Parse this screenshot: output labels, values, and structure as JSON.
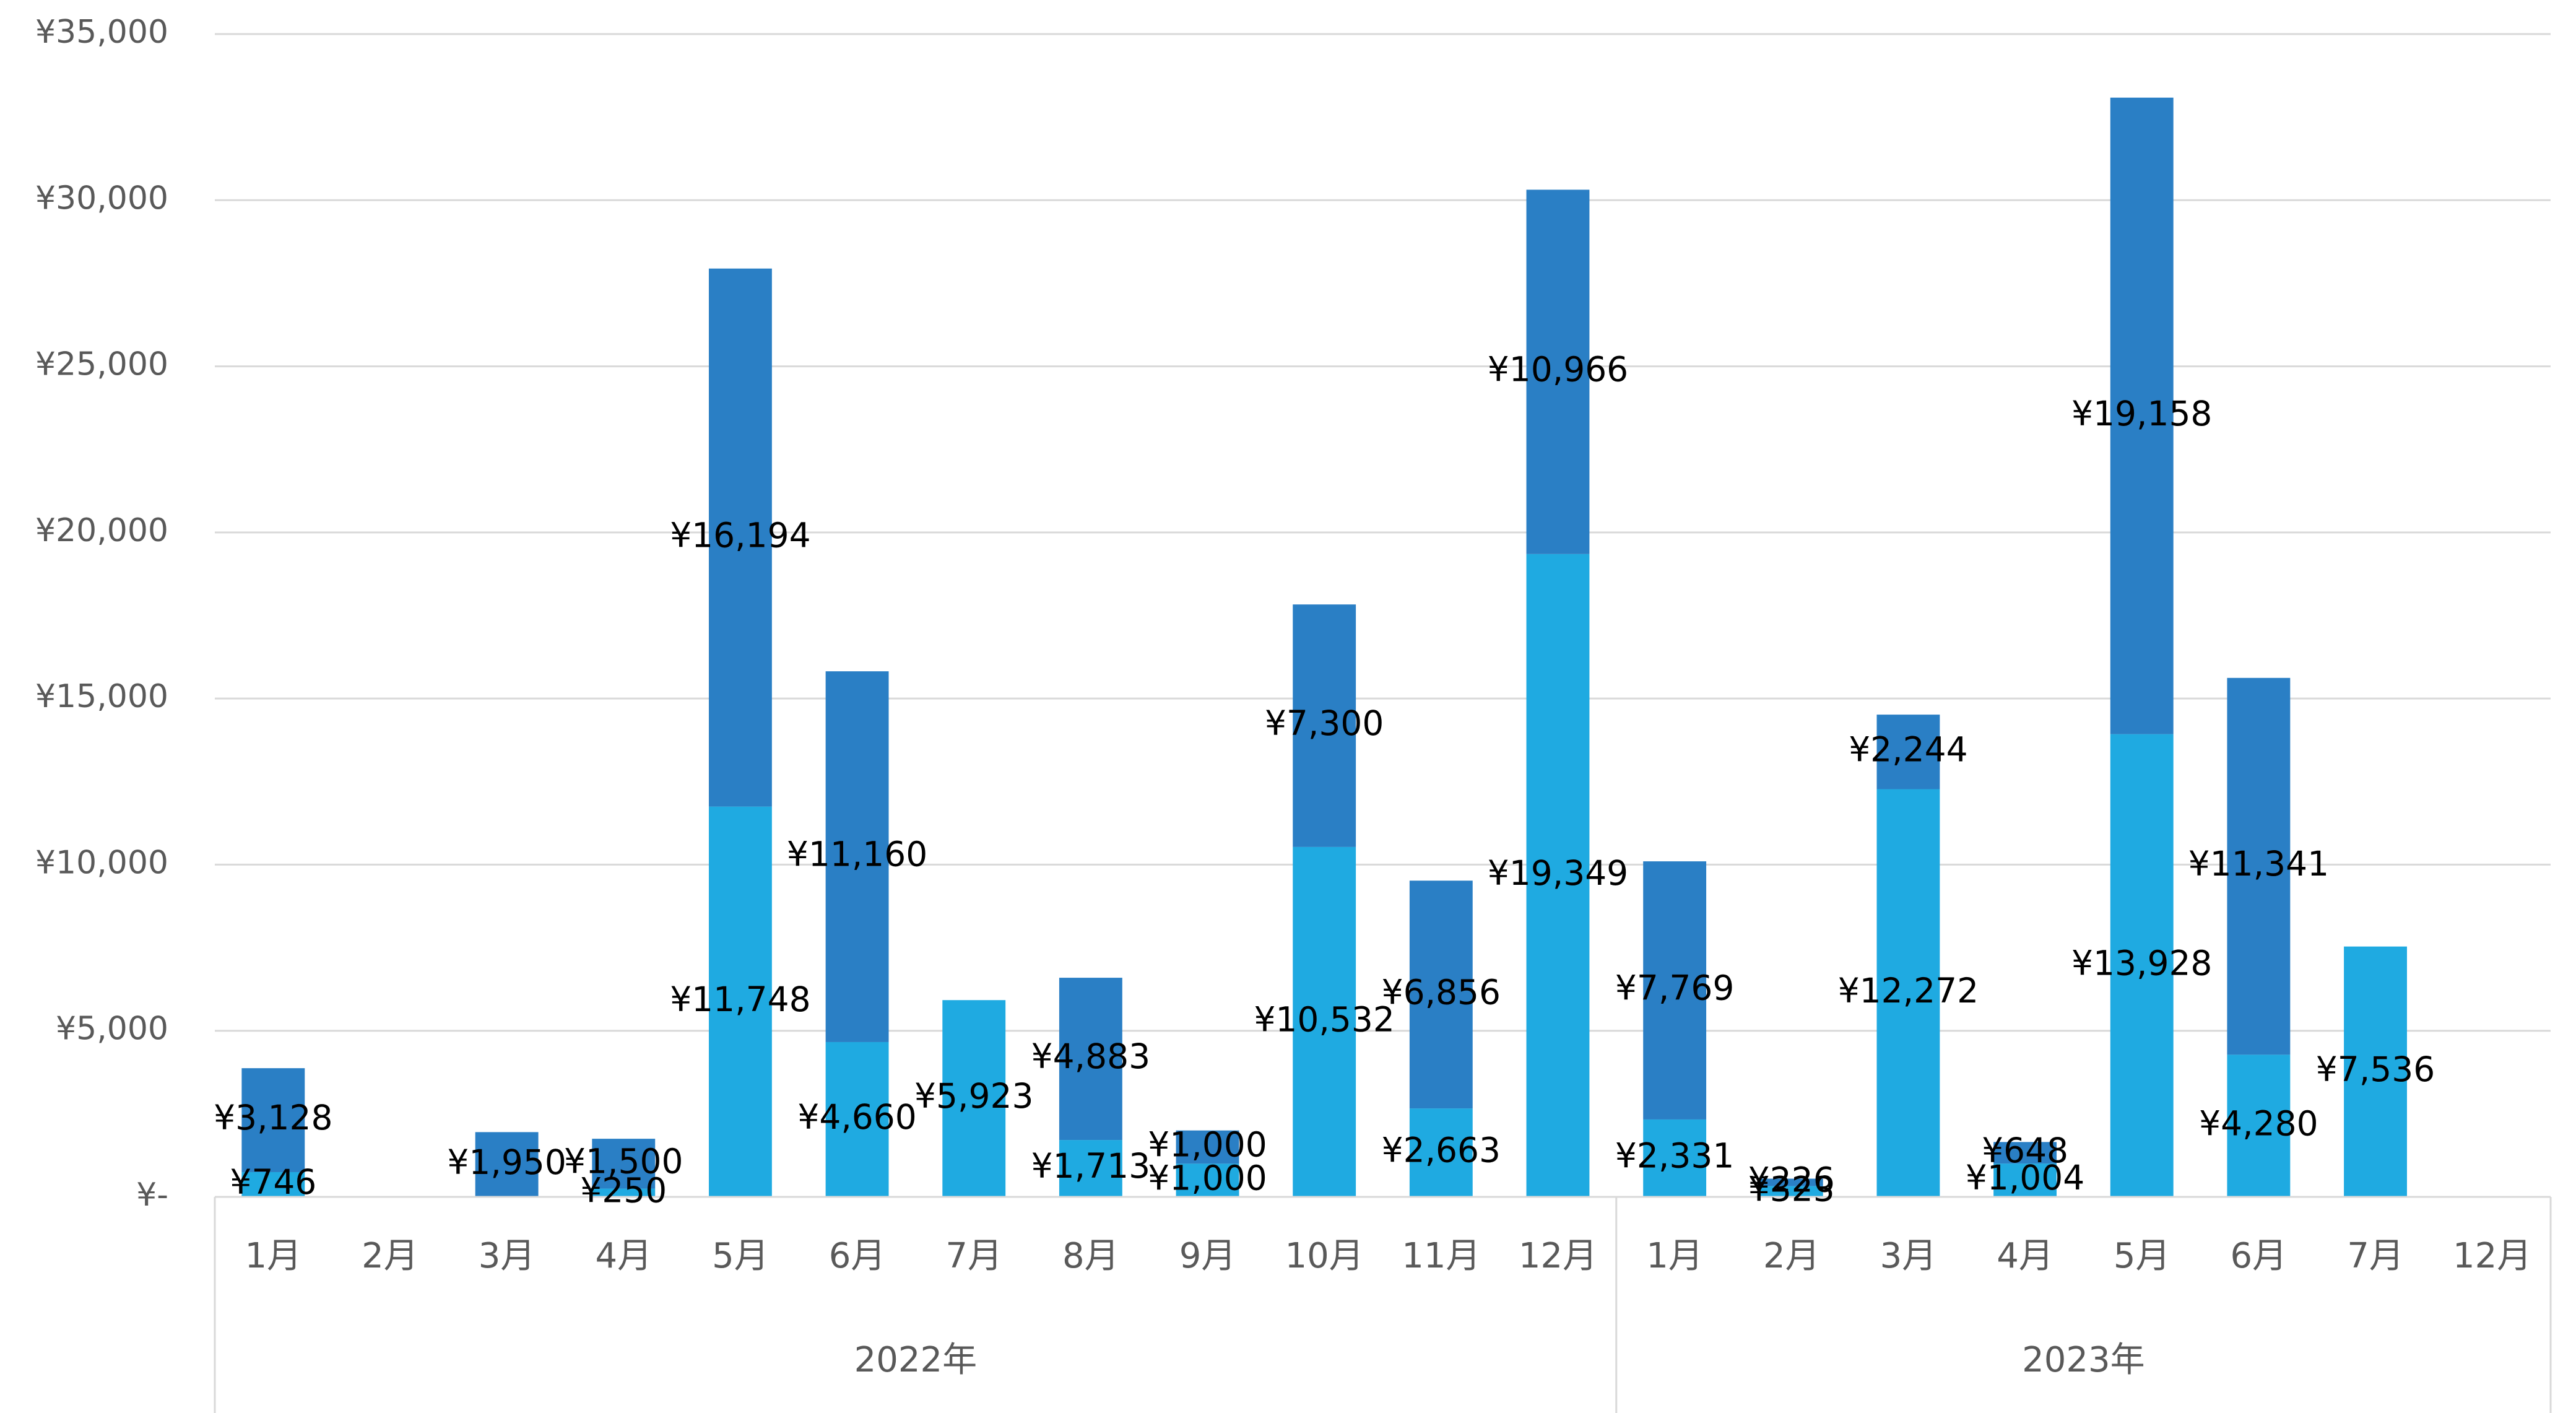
{
  "chart_data": {
    "type": "bar",
    "stacked": true,
    "ylim": [
      0,
      35000
    ],
    "yticks": [
      {
        "value": 0,
        "label": "¥-"
      },
      {
        "value": 5000,
        "label": "¥5,000"
      },
      {
        "value": 10000,
        "label": "¥10,000"
      },
      {
        "value": 15000,
        "label": "¥15,000"
      },
      {
        "value": 20000,
        "label": "¥20,000"
      },
      {
        "value": 25000,
        "label": "¥25,000"
      },
      {
        "value": 30000,
        "label": "¥30,000"
      },
      {
        "value": 35000,
        "label": "¥35,000"
      }
    ],
    "grid": true,
    "legend": "none",
    "groups": [
      {
        "label": "2022年",
        "count": 12
      },
      {
        "label": "2023年",
        "count": 8
      }
    ],
    "categories": [
      "1月",
      "2月",
      "3月",
      "4月",
      "5月",
      "6月",
      "7月",
      "8月",
      "9月",
      "10月",
      "11月",
      "12月",
      "1月",
      "2月",
      "3月",
      "4月",
      "5月",
      "6月",
      "7月",
      "12月"
    ],
    "series": [
      {
        "color": "#1faae1",
        "values": [
          746,
          null,
          null,
          250,
          11748,
          4660,
          5923,
          1713,
          1000,
          10532,
          2663,
          19349,
          2331,
          323,
          12272,
          1004,
          13928,
          4280,
          7536,
          null
        ],
        "labels": [
          "¥746",
          "",
          "",
          "¥250",
          "¥11,748",
          "¥4,660",
          "¥5,923",
          "¥1,713",
          "¥1,000",
          "¥10,532",
          "¥2,663",
          "¥19,349",
          "¥2,331",
          "¥323",
          "¥12,272",
          "¥1,004",
          "¥13,928",
          "¥4,280",
          "¥7,536",
          ""
        ]
      },
      {
        "color": "#2a7fc5",
        "values": [
          3128,
          null,
          1950,
          1500,
          16194,
          11160,
          null,
          4883,
          1000,
          7300,
          6856,
          10966,
          7769,
          226,
          2244,
          648,
          19158,
          11341,
          null,
          null
        ],
        "labels": [
          "¥3,128",
          "",
          "¥1,950",
          "¥1,500",
          "¥16,194",
          "¥11,160",
          "",
          "¥4,883",
          "¥1,000",
          "¥7,300",
          "¥6,856",
          "¥10,966",
          "¥7,769",
          "¥226",
          "¥2,244",
          "¥648",
          "¥19,158",
          "¥11,341",
          "",
          ""
        ]
      }
    ]
  }
}
